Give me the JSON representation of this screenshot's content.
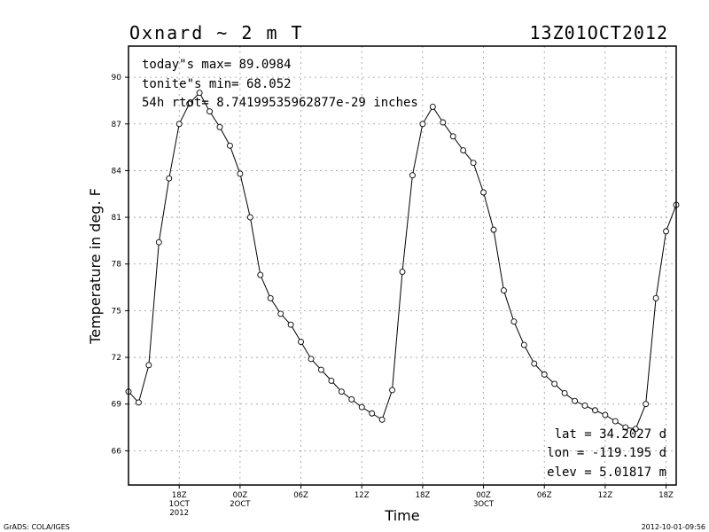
{
  "chart_data": {
    "type": "line",
    "title_left": "Oxnard ~ 2 m T",
    "title_right": "13Z01OCT2012",
    "ylabel": "Temperature in deg. F",
    "xlabel": "Time",
    "ylim": [
      63.8,
      92
    ],
    "yticks": [
      66,
      69,
      72,
      75,
      78,
      81,
      84,
      87,
      90
    ],
    "ytick_labels": [
      "66",
      "69",
      "72",
      "75",
      "78",
      "81",
      "84",
      "87",
      "90"
    ],
    "x_hours": [
      0,
      1,
      2,
      3,
      4,
      5,
      6,
      7,
      8,
      9,
      10,
      11,
      12,
      13,
      14,
      15,
      16,
      17,
      18,
      19,
      20,
      21,
      22,
      23,
      24,
      25,
      26,
      27,
      28,
      29,
      30,
      31,
      32,
      33,
      34,
      35,
      36,
      37,
      38,
      39,
      40,
      41,
      42,
      43,
      44,
      45,
      46,
      47,
      48,
      49,
      50,
      51,
      52,
      53,
      54
    ],
    "xlim": [
      0,
      54
    ],
    "xticks": [
      {
        "hour": 5,
        "lines": [
          "18Z",
          "1OCT",
          "2012"
        ]
      },
      {
        "hour": 11,
        "lines": [
          "00Z",
          "2OCT"
        ]
      },
      {
        "hour": 17,
        "lines": [
          "06Z"
        ]
      },
      {
        "hour": 23,
        "lines": [
          "12Z"
        ]
      },
      {
        "hour": 29,
        "lines": [
          "18Z"
        ]
      },
      {
        "hour": 35,
        "lines": [
          "00Z",
          "3OCT"
        ]
      },
      {
        "hour": 41,
        "lines": [
          "06Z"
        ]
      },
      {
        "hour": 47,
        "lines": [
          "12Z"
        ]
      },
      {
        "hour": 53,
        "lines": [
          "18Z"
        ]
      }
    ],
    "series": [
      {
        "values": [
          69.8,
          69.1,
          71.5,
          79.4,
          83.5,
          87.0,
          88.3,
          89.0,
          87.8,
          86.8,
          85.6,
          83.8,
          81.0,
          77.3,
          75.8,
          74.8,
          74.1,
          73.0,
          71.9,
          71.2,
          70.5,
          69.8,
          69.3,
          68.8,
          68.4,
          68.0,
          69.9,
          77.5,
          83.7,
          87.0,
          88.1,
          87.1,
          86.2,
          85.3,
          84.5,
          82.6,
          80.2,
          76.3,
          74.3,
          72.8,
          71.6,
          70.9,
          70.3,
          69.7,
          69.2,
          68.9,
          68.6,
          68.3,
          67.9,
          67.5,
          67.4,
          69.0,
          75.8,
          80.1,
          81.8
        ]
      }
    ],
    "annotations_top": [
      "today\"s max= 89.0984",
      "tonite\"s min= 68.052",
      "54h rtot= 8.74199535962877e-29 inches"
    ],
    "annotations_bottom": [
      "lat = 34.2027 d",
      "lon = -119.195 d",
      "elev = 5.01817 m"
    ],
    "grid": true
  },
  "footer": {
    "left": "GrADS: COLA/IGES",
    "right": "2012-10-01-09:56"
  }
}
